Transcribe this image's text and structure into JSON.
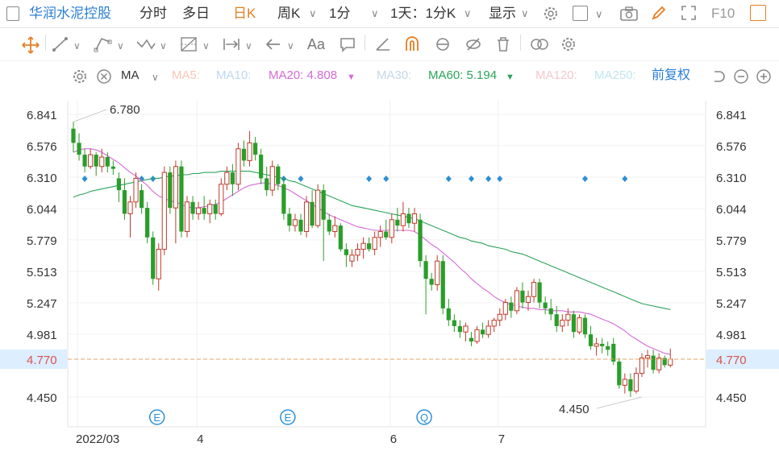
{
  "topbar": {
    "stock_name": "华润水泥控股",
    "tabs": [
      "分时",
      "多日",
      "日K",
      "周K",
      "1分",
      "1天：1分K",
      "显示"
    ],
    "active_tab": "日K",
    "f10": "F10"
  },
  "toolbar": {
    "text_tool": "Aa"
  },
  "indicators": {
    "label": "MA",
    "items": [
      {
        "label": "MA5:",
        "value": "",
        "color": "#f7c6b5"
      },
      {
        "label": "MA10:",
        "value": "",
        "color": "#bcd8f1"
      },
      {
        "label": "MA20:",
        "value": "4.808",
        "color": "#d46bd8"
      },
      {
        "label": "MA30:",
        "value": "",
        "color": "#c4d8ee"
      },
      {
        "label": "MA60:",
        "value": "5.194",
        "color": "#2aa35a"
      },
      {
        "label": "MA120:",
        "value": "",
        "color": "#f5c9cb"
      },
      {
        "label": "MA250:",
        "value": "",
        "color": "#bfe6ee"
      }
    ],
    "adjust": "前复权"
  },
  "chart_data": {
    "type": "candlestick",
    "ylim": [
      4.32,
      6.93
    ],
    "y_ticks": [
      "6.841",
      "6.576",
      "6.310",
      "6.044",
      "5.779",
      "5.513",
      "5.247",
      "4.981",
      "4.450"
    ],
    "current_price": "4.770",
    "max_label": "6.780",
    "min_label": "4.450",
    "x_labels": [
      {
        "label": "2022/03",
        "index": 1
      },
      {
        "label": "4",
        "index": 22
      },
      {
        "label": "6",
        "index": 56
      },
      {
        "label": "7",
        "index": 75
      }
    ],
    "event_markers": [
      {
        "label": "E",
        "index": 14
      },
      {
        "label": "E",
        "index": 37
      },
      {
        "label": "Q",
        "index": 61
      }
    ],
    "dot_markers": [
      2,
      12,
      14,
      27,
      29,
      37,
      40,
      52,
      55,
      66,
      70,
      73,
      75,
      90,
      97
    ],
    "colors": {
      "up": "#c0392b",
      "down": "#2a9d2a",
      "ma20": "#d46bd8",
      "ma60": "#2aa35a",
      "price_line": "#e8a060",
      "marker": "#2b8fd6"
    },
    "candles": [
      [
        6.72,
        6.78,
        6.52,
        6.6
      ],
      [
        6.6,
        6.68,
        6.45,
        6.5
      ],
      [
        6.5,
        6.55,
        6.35,
        6.4
      ],
      [
        6.4,
        6.55,
        6.38,
        6.5
      ],
      [
        6.5,
        6.52,
        6.32,
        6.4
      ],
      [
        6.4,
        6.55,
        6.35,
        6.48
      ],
      [
        6.48,
        6.52,
        6.35,
        6.4
      ],
      [
        6.4,
        6.45,
        6.33,
        6.38
      ],
      [
        6.3,
        6.35,
        6.1,
        6.2
      ],
      [
        6.2,
        6.3,
        5.95,
        6.0
      ],
      [
        6.0,
        6.15,
        5.8,
        6.1
      ],
      [
        6.1,
        6.35,
        6.05,
        6.3
      ],
      [
        6.2,
        6.25,
        6.0,
        6.05
      ],
      [
        6.05,
        6.1,
        5.75,
        5.8
      ],
      [
        5.8,
        5.85,
        5.4,
        5.45
      ],
      [
        5.45,
        5.75,
        5.35,
        5.7
      ],
      [
        5.7,
        6.4,
        5.65,
        6.35
      ],
      [
        6.35,
        6.4,
        6.0,
        6.05
      ],
      [
        6.05,
        6.45,
        5.75,
        6.4
      ],
      [
        6.4,
        6.45,
        5.8,
        5.85
      ],
      [
        5.85,
        6.15,
        5.8,
        6.1
      ],
      [
        6.1,
        6.15,
        5.95,
        6.0
      ],
      [
        6.0,
        6.1,
        5.95,
        6.05
      ],
      [
        6.05,
        6.15,
        5.95,
        6.0
      ],
      [
        6.0,
        6.12,
        5.92,
        6.08
      ],
      [
        6.08,
        6.12,
        5.95,
        6.0
      ],
      [
        6.0,
        6.3,
        5.98,
        6.25
      ],
      [
        6.25,
        6.4,
        6.2,
        6.35
      ],
      [
        6.35,
        6.42,
        6.15,
        6.25
      ],
      [
        6.25,
        6.6,
        6.2,
        6.55
      ],
      [
        6.55,
        6.62,
        6.4,
        6.45
      ],
      [
        6.45,
        6.7,
        6.4,
        6.6
      ],
      [
        6.6,
        6.65,
        6.45,
        6.5
      ],
      [
        6.5,
        6.55,
        6.25,
        6.3
      ],
      [
        6.3,
        6.4,
        6.15,
        6.2
      ],
      [
        6.2,
        6.45,
        6.15,
        6.4
      ],
      [
        6.4,
        6.42,
        6.2,
        6.25
      ],
      [
        6.25,
        6.3,
        5.95,
        6.0
      ],
      [
        6.0,
        6.05,
        5.85,
        5.9
      ],
      [
        5.9,
        6.0,
        5.85,
        5.95
      ],
      [
        5.95,
        6.0,
        5.82,
        5.85
      ],
      [
        5.85,
        6.15,
        5.8,
        6.1
      ],
      [
        6.1,
        6.2,
        5.88,
        5.9
      ],
      [
        5.9,
        6.25,
        5.88,
        6.2
      ],
      [
        6.2,
        6.25,
        5.6,
        5.95
      ],
      [
        5.95,
        6.0,
        5.82,
        5.85
      ],
      [
        5.85,
        5.98,
        5.8,
        5.9
      ],
      [
        5.9,
        5.92,
        5.68,
        5.7
      ],
      [
        5.7,
        5.75,
        5.55,
        5.65
      ],
      [
        5.6,
        5.7,
        5.55,
        5.65
      ],
      [
        5.65,
        5.75,
        5.6,
        5.7
      ],
      [
        5.7,
        5.8,
        5.62,
        5.75
      ],
      [
        5.75,
        5.8,
        5.68,
        5.7
      ],
      [
        5.7,
        5.85,
        5.65,
        5.8
      ],
      [
        5.8,
        5.9,
        5.72,
        5.85
      ],
      [
        5.85,
        5.95,
        5.78,
        5.8
      ],
      [
        5.8,
        6.0,
        5.75,
        5.95
      ],
      [
        5.95,
        6.05,
        5.85,
        5.9
      ],
      [
        5.9,
        6.1,
        5.85,
        6.0
      ],
      [
        6.0,
        6.05,
        5.88,
        5.92
      ],
      [
        5.92,
        6.05,
        5.85,
        6.0
      ],
      [
        5.95,
        6.0,
        5.55,
        5.6
      ],
      [
        5.6,
        5.65,
        5.15,
        5.45
      ],
      [
        5.45,
        5.5,
        5.35,
        5.4
      ],
      [
        5.4,
        5.65,
        5.35,
        5.6
      ],
      [
        5.6,
        5.65,
        5.15,
        5.2
      ],
      [
        5.2,
        5.28,
        5.05,
        5.1
      ],
      [
        5.1,
        5.15,
        5.0,
        5.05
      ],
      [
        5.05,
        5.1,
        4.95,
        5.0
      ],
      [
        5.0,
        5.08,
        4.92,
        5.05
      ],
      [
        4.95,
        5.0,
        4.88,
        4.92
      ],
      [
        4.92,
        5.05,
        4.9,
        5.02
      ],
      [
        5.02,
        5.08,
        4.95,
        4.98
      ],
      [
        4.98,
        5.1,
        4.95,
        5.05
      ],
      [
        5.05,
        5.12,
        5.0,
        5.1
      ],
      [
        5.1,
        5.2,
        5.05,
        5.15
      ],
      [
        5.15,
        5.28,
        5.1,
        5.25
      ],
      [
        5.25,
        5.3,
        5.12,
        5.18
      ],
      [
        5.18,
        5.38,
        5.15,
        5.35
      ],
      [
        5.35,
        5.42,
        5.2,
        5.25
      ],
      [
        5.25,
        5.35,
        5.18,
        5.3
      ],
      [
        5.3,
        5.45,
        5.25,
        5.42
      ],
      [
        5.42,
        5.45,
        5.2,
        5.25
      ],
      [
        5.25,
        5.3,
        5.15,
        5.2
      ],
      [
        5.2,
        5.28,
        5.1,
        5.15
      ],
      [
        5.15,
        5.22,
        5.0,
        5.05
      ],
      [
        5.05,
        5.15,
        5.0,
        5.1
      ],
      [
        5.1,
        5.2,
        5.05,
        5.15
      ],
      [
        5.15,
        5.18,
        4.95,
        5.0
      ],
      [
        5.0,
        5.15,
        4.98,
        5.12
      ],
      [
        5.12,
        5.15,
        4.95,
        4.98
      ],
      [
        4.98,
        5.05,
        4.85,
        4.88
      ],
      [
        4.88,
        4.95,
        4.8,
        4.9
      ],
      [
        4.9,
        4.95,
        4.82,
        4.88
      ],
      [
        4.88,
        4.92,
        4.8,
        4.85
      ],
      [
        4.9,
        4.95,
        4.72,
        4.75
      ],
      [
        4.75,
        4.78,
        4.52,
        4.55
      ],
      [
        4.55,
        4.65,
        4.48,
        4.6
      ],
      [
        4.6,
        4.65,
        4.45,
        4.5
      ],
      [
        4.5,
        4.7,
        4.48,
        4.65
      ],
      [
        4.65,
        4.82,
        4.62,
        4.78
      ],
      [
        4.78,
        4.85,
        4.7,
        4.8
      ],
      [
        4.8,
        4.85,
        4.65,
        4.68
      ],
      [
        4.68,
        4.82,
        4.65,
        4.78
      ],
      [
        4.78,
        4.8,
        4.7,
        4.72
      ],
      [
        4.72,
        4.86,
        4.7,
        4.77
      ]
    ],
    "ma20": [
      6.52,
      6.54,
      6.55,
      6.55,
      6.54,
      6.52,
      6.49,
      6.46,
      6.43,
      6.39,
      6.35,
      6.32,
      6.28,
      6.24,
      6.19,
      6.15,
      6.13,
      6.11,
      6.1,
      6.08,
      6.06,
      6.05,
      6.05,
      6.06,
      6.07,
      6.08,
      6.1,
      6.13,
      6.16,
      6.19,
      6.22,
      6.24,
      6.25,
      6.26,
      6.26,
      6.25,
      6.24,
      6.22,
      6.2,
      6.17,
      6.14,
      6.11,
      6.08,
      6.05,
      6.02,
      5.99,
      5.97,
      5.95,
      5.93,
      5.91,
      5.89,
      5.88,
      5.87,
      5.86,
      5.86,
      5.86,
      5.86,
      5.86,
      5.86,
      5.86,
      5.85,
      5.82,
      5.78,
      5.74,
      5.71,
      5.67,
      5.63,
      5.59,
      5.54,
      5.5,
      5.45,
      5.41,
      5.37,
      5.34,
      5.3,
      5.27,
      5.25,
      5.23,
      5.22,
      5.21,
      5.2,
      5.2,
      5.19,
      5.19,
      5.18,
      5.18,
      5.18,
      5.17,
      5.17,
      5.17,
      5.16,
      5.15,
      5.13,
      5.11,
      5.09,
      5.07,
      5.04,
      5.01,
      4.97,
      4.94,
      4.91,
      4.88,
      4.86,
      4.84,
      4.82,
      4.81
    ],
    "ma60": [
      6.14,
      6.16,
      6.17,
      6.19,
      6.2,
      6.21,
      6.22,
      6.23,
      6.24,
      6.25,
      6.26,
      6.27,
      6.28,
      6.29,
      6.3,
      6.3,
      6.31,
      6.32,
      6.32,
      6.33,
      6.33,
      6.34,
      6.34,
      6.35,
      6.35,
      6.35,
      6.36,
      6.36,
      6.36,
      6.36,
      6.36,
      6.36,
      6.35,
      6.34,
      6.33,
      6.32,
      6.31,
      6.3,
      6.28,
      6.27,
      6.25,
      6.23,
      6.21,
      6.19,
      6.17,
      6.15,
      6.13,
      6.11,
      6.09,
      6.07,
      6.06,
      6.05,
      6.04,
      6.03,
      6.02,
      6.01,
      6.0,
      5.99,
      5.98,
      5.97,
      5.96,
      5.94,
      5.92,
      5.9,
      5.88,
      5.86,
      5.84,
      5.82,
      5.8,
      5.79,
      5.77,
      5.76,
      5.75,
      5.73,
      5.72,
      5.71,
      5.7,
      5.68,
      5.67,
      5.66,
      5.64,
      5.62,
      5.6,
      5.58,
      5.56,
      5.54,
      5.52,
      5.5,
      5.48,
      5.46,
      5.44,
      5.42,
      5.4,
      5.38,
      5.36,
      5.34,
      5.32,
      5.3,
      5.28,
      5.26,
      5.24,
      5.23,
      5.22,
      5.21,
      5.2,
      5.19
    ]
  }
}
